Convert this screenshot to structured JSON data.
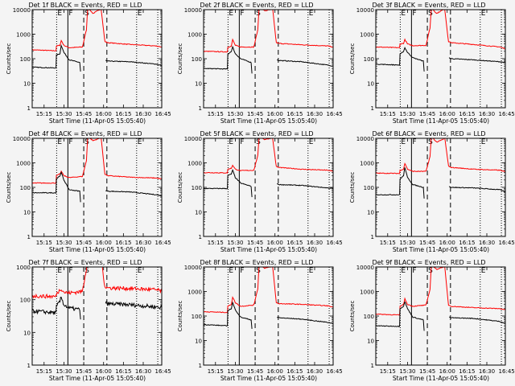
{
  "chart_data": {
    "type": "line",
    "layout": "3x3 grid",
    "title_suffix": "BLACK = Events, RED = LLD",
    "xlabel": "Start Time (11-Apr-05 15:05:40)",
    "ylabel": "Counts/sec",
    "x_units": "minutes after 15:00",
    "xlim": [
      6,
      104
    ],
    "x_ticks": [
      15,
      30,
      45,
      60,
      75,
      90,
      105
    ],
    "x_tick_labels": [
      "15:15",
      "15:30",
      "15:45",
      "16:00",
      "16:15",
      "16:30",
      "16:45"
    ],
    "y_scale": "log",
    "y_tick_values": [
      1,
      10,
      100,
      1000,
      10000
    ],
    "y_tick_labels": [
      "1",
      "10",
      "100",
      "1000",
      "10000"
    ],
    "markers": [
      {
        "t": 24.5,
        "style": "dotted",
        "label": "E"
      },
      {
        "t": 33,
        "style": "solid",
        "label": "F"
      },
      {
        "t": 45,
        "style": "dashed",
        "label": "S"
      },
      {
        "t": 62.5,
        "style": "dashed",
        "label": ""
      },
      {
        "t": 85,
        "style": "dotted",
        "label": "E"
      },
      {
        "t": 101,
        "style": "dotted",
        "label": ""
      }
    ],
    "black_t_pre": [
      6,
      24,
      24.3,
      27,
      28,
      30,
      34,
      42,
      42.6
    ],
    "black_t_post": [
      61.5,
      63,
      80,
      100,
      104
    ],
    "red_t": [
      6,
      24,
      24.3,
      27,
      28,
      30,
      34,
      44,
      47,
      48,
      52,
      57,
      58,
      61,
      63,
      80,
      100,
      104
    ],
    "colors": {
      "events": "#000000",
      "lld": "#ff0000"
    },
    "panels": [
      {
        "title": "Det 1f",
        "ylim": [
          1,
          10000
        ],
        "black_pre": [
          45,
          42,
          140,
          160,
          350,
          180,
          90,
          70,
          30
        ],
        "black_post": [
          85,
          80,
          75,
          60,
          52
        ],
        "red": [
          230,
          210,
          330,
          350,
          550,
          350,
          280,
          300,
          1500,
          12000,
          7000,
          10000,
          12000,
          500,
          450,
          380,
          330,
          300
        ]
      },
      {
        "title": "Det 2f",
        "ylim": [
          1,
          10000
        ],
        "black_pre": [
          40,
          38,
          150,
          200,
          300,
          160,
          100,
          70,
          25
        ],
        "black_post": [
          90,
          85,
          75,
          55,
          50
        ],
        "red": [
          200,
          190,
          300,
          320,
          600,
          350,
          300,
          300,
          1500,
          14000,
          9000,
          10000,
          14000,
          450,
          420,
          370,
          330,
          300
        ]
      },
      {
        "title": "Det 3f",
        "ylim": [
          1,
          10000
        ],
        "black_pre": [
          60,
          55,
          150,
          200,
          280,
          180,
          110,
          80,
          30
        ],
        "black_post": [
          110,
          100,
          90,
          75,
          70
        ],
        "red": [
          300,
          280,
          400,
          420,
          600,
          400,
          340,
          350,
          1800,
          12000,
          7000,
          10000,
          12000,
          500,
          450,
          380,
          300,
          250
        ]
      },
      {
        "title": "Det 4f",
        "ylim": [
          1,
          10000
        ],
        "black_pre": [
          60,
          60,
          220,
          300,
          400,
          200,
          80,
          70,
          25
        ],
        "black_post": [
          75,
          70,
          65,
          50,
          45
        ],
        "red": [
          150,
          150,
          300,
          350,
          450,
          300,
          250,
          280,
          1200,
          12000,
          8000,
          10000,
          12000,
          350,
          300,
          260,
          240,
          220
        ]
      },
      {
        "title": "Det 5f",
        "ylim": [
          1,
          10000
        ],
        "black_pre": [
          90,
          90,
          300,
          350,
          500,
          250,
          150,
          110,
          40
        ],
        "black_post": [
          140,
          130,
          120,
          95,
          90
        ],
        "red": [
          400,
          390,
          550,
          600,
          800,
          550,
          480,
          500,
          2000,
          12000,
          9000,
          10000,
          12000,
          700,
          650,
          550,
          500,
          450
        ]
      },
      {
        "title": "Det 6f",
        "ylim": [
          1,
          10000
        ],
        "black_pre": [
          50,
          50,
          220,
          300,
          650,
          250,
          130,
          100,
          35
        ],
        "black_post": [
          110,
          100,
          95,
          80,
          65
        ],
        "red": [
          380,
          370,
          500,
          550,
          950,
          550,
          450,
          450,
          1800,
          12000,
          7000,
          9000,
          12000,
          750,
          650,
          550,
          500,
          430
        ]
      },
      {
        "title": "Det 7f",
        "ylim": [
          1,
          1000
        ],
        "black_pre": [
          45,
          40,
          60,
          90,
          120,
          70,
          55,
          50,
          25
        ],
        "black_post": [
          80,
          75,
          70,
          60,
          58
        ],
        "red": [
          130,
          125,
          150,
          200,
          220,
          170,
          160,
          180,
          900,
          2000,
          2000,
          2000,
          2000,
          250,
          230,
          220,
          200,
          180
        ]
      },
      {
        "title": "Det 8f",
        "ylim": [
          1,
          10000
        ],
        "black_pre": [
          45,
          40,
          170,
          200,
          350,
          180,
          90,
          70,
          30
        ],
        "black_post": [
          90,
          85,
          75,
          55,
          50
        ],
        "red": [
          150,
          140,
          250,
          300,
          600,
          350,
          250,
          280,
          1300,
          14000,
          9000,
          10000,
          14000,
          350,
          320,
          300,
          260,
          230
        ]
      },
      {
        "title": "Det 9f",
        "ylim": [
          1,
          10000
        ],
        "black_pre": [
          40,
          38,
          200,
          250,
          380,
          200,
          90,
          70,
          25
        ],
        "black_post": [
          90,
          85,
          80,
          60,
          50
        ],
        "red": [
          120,
          110,
          250,
          300,
          500,
          300,
          250,
          280,
          1200,
          12000,
          8000,
          10000,
          12000,
          280,
          250,
          220,
          200,
          180
        ]
      }
    ]
  }
}
